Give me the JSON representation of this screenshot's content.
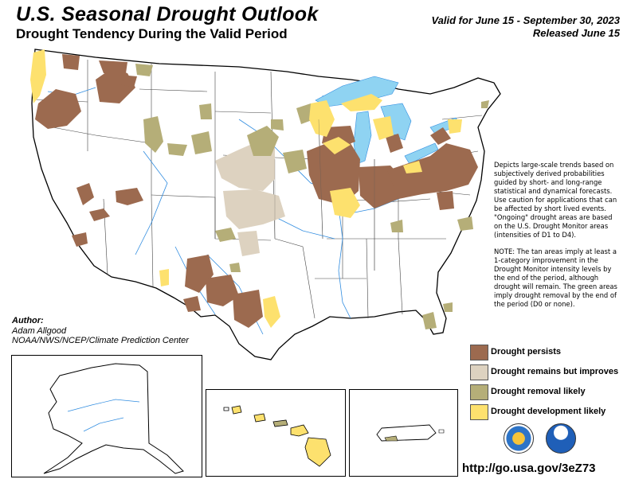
{
  "header": {
    "title": "U.S. Seasonal Drought Outlook",
    "subtitle": "Drought Tendency During the Valid Period",
    "valid_line": "Valid for June 15 - September 30, 2023",
    "released_line": "Released June 15"
  },
  "notes": {
    "p1": "Depicts large-scale trends based on subjectively derived probabilities guided by short- and long-range statistical and dynamical forecasts. Use caution for applications that can be affected by short lived events. \"Ongoing\" drought areas are based on the U.S. Drought Monitor areas (intensities of D1 to D4).",
    "p2": "NOTE: The tan areas imply at least a 1-category improvement in the Drought Monitor intensity levels by the end of the period, although drought will remain. The green areas imply drought removal by the end of the period (D0 or none)."
  },
  "author": {
    "label": "Author:",
    "name": "Adam Allgood",
    "org": "NOAA/NWS/NCEP/Climate Prediction Center"
  },
  "legend": {
    "items": [
      {
        "label": "Drought persists",
        "color": "#9c6a4f"
      },
      {
        "label": "Drought remains but improves",
        "color": "#ddd2c0"
      },
      {
        "label": "Drought removal likely",
        "color": "#b5ae78"
      },
      {
        "label": "Drought development likely",
        "color": "#fde16e"
      }
    ]
  },
  "colors": {
    "persists": "#9c6a4f",
    "improves": "#ddd2c0",
    "removal": "#b5ae78",
    "development": "#fde16e",
    "lakes": "#8fd3f2",
    "rivers": "#2f8ce0"
  },
  "logos": [
    "doc-seal-icon",
    "noaa-logo-icon"
  ],
  "footer": {
    "url": "http://go.usa.gov/3eZ73"
  }
}
